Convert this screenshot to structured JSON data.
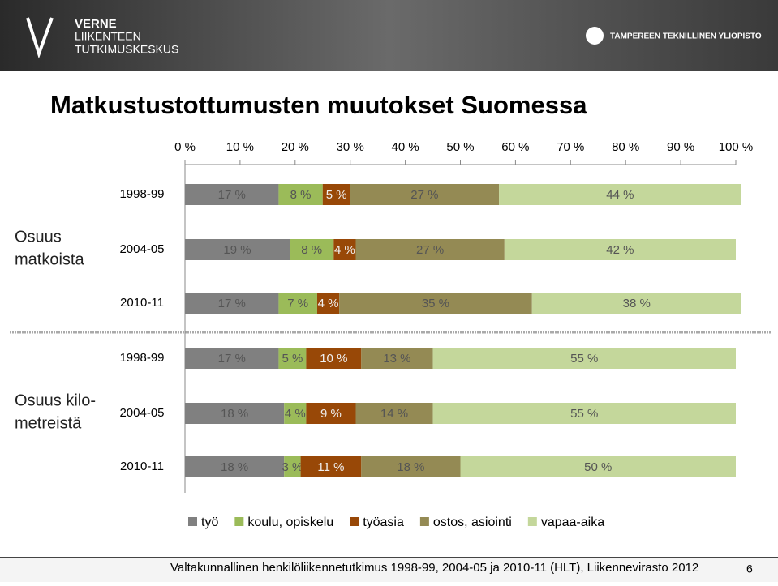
{
  "header": {
    "logo_left": [
      "VERNE",
      "LIIKENTEEN",
      "TUTKIMUSKESKUS"
    ],
    "logo_right": "TAMPEREEN TEKNILLINEN YLIOPISTO"
  },
  "chart_data": {
    "type": "bar",
    "orientation": "horizontal",
    "stacked": true,
    "title": "Matkustustottumusten muutokset Suomessa",
    "categories": [
      "1998-99",
      "2004-05",
      "2010-11",
      "1998-99",
      "2004-05",
      "2010-11"
    ],
    "groups": [
      {
        "lines": [
          "Osuus",
          "matkoista"
        ],
        "size": 3
      },
      {
        "lines": [
          "Osuus kilo-",
          "metreistä"
        ],
        "size": 3
      }
    ],
    "xlim": [
      0,
      100
    ],
    "xticks": [
      {
        "value": 0,
        "label": "0 %"
      },
      {
        "value": 10,
        "label": "10 %"
      },
      {
        "value": 20,
        "label": "20 %"
      },
      {
        "value": 30,
        "label": "30 %"
      },
      {
        "value": 40,
        "label": "40 %"
      },
      {
        "value": 50,
        "label": "50 %"
      },
      {
        "value": 60,
        "label": "60 %"
      },
      {
        "value": 70,
        "label": "70 %"
      },
      {
        "value": 80,
        "label": "80 %"
      },
      {
        "value": 90,
        "label": "90 %"
      },
      {
        "value": 100,
        "label": "100 %"
      }
    ],
    "series": [
      {
        "name": "työ",
        "color": "#808080",
        "values": [
          17,
          19,
          17,
          17,
          18,
          18
        ],
        "value_labels": [
          "17 %",
          "19 %",
          "17 %",
          "17 %",
          "18 %",
          "18 %"
        ]
      },
      {
        "name": "koulu, opiskelu",
        "color": "#9bbb59",
        "values": [
          8,
          8,
          7,
          5,
          4,
          3
        ],
        "value_labels": [
          "8 %",
          "8 %",
          "7 %",
          "5 %",
          "4 %",
          "3 %"
        ]
      },
      {
        "name": "työasia",
        "color": "#984807",
        "values": [
          5,
          4,
          4,
          10,
          9,
          11
        ],
        "value_labels": [
          "5 %",
          "4 %",
          "4 %",
          "10 %",
          "9 %",
          "11 %"
        ]
      },
      {
        "name": "ostos, asiointi",
        "color": "#948a54",
        "values": [
          27,
          27,
          35,
          13,
          14,
          18
        ],
        "value_labels": [
          "27 %",
          "27 %",
          "35 %",
          "13 %",
          "14 %",
          "18 %"
        ]
      },
      {
        "name": "vapaa-aika",
        "color": "#c4d79b",
        "values": [
          44,
          42,
          38,
          55,
          55,
          50
        ],
        "value_labels": [
          "44 %",
          "42 %",
          "38 %",
          "55 %",
          "55 %",
          "50 %"
        ]
      }
    ],
    "legend": "bottom"
  },
  "footer": {
    "source": "Valtakunnallinen henkilöliikennetutkimus 1998-99, 2004-05 ja 2010-11 (HLT), Liikennevirasto 2012",
    "page": "6"
  }
}
